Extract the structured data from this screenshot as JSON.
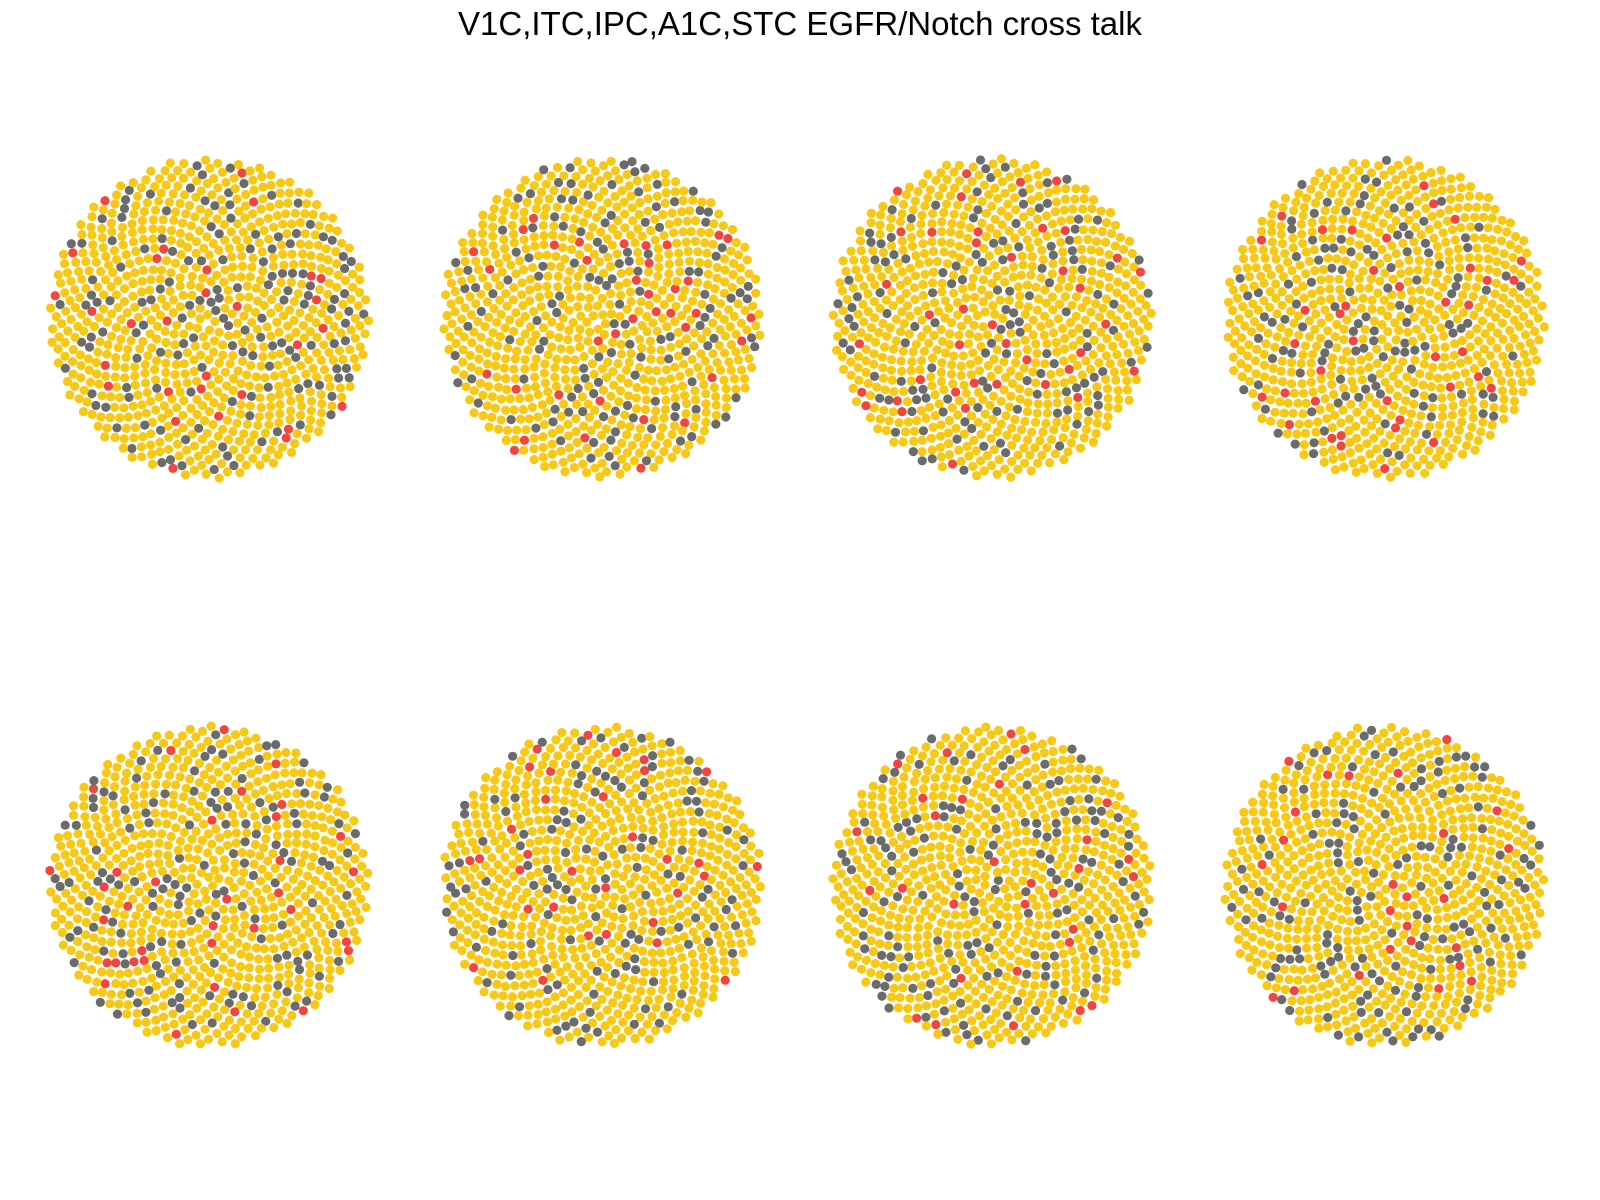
{
  "figure": {
    "title": "V1C,ITC,IPC,A1C,STC EGFR/Notch cross talk"
  },
  "legend_colors": {
    "majority_cell": "#F7C815",
    "gray_cell": "#6B6B6B",
    "red_cell": "#F0463F"
  },
  "panels": [
    {
      "row": 1,
      "col": 1,
      "gray_fraction": 0.16,
      "red_fraction": 0.035
    },
    {
      "row": 1,
      "col": 2,
      "gray_fraction": 0.16,
      "red_fraction": 0.04
    },
    {
      "row": 1,
      "col": 3,
      "gray_fraction": 0.15,
      "red_fraction": 0.04
    },
    {
      "row": 1,
      "col": 4,
      "gray_fraction": 0.15,
      "red_fraction": 0.04
    },
    {
      "row": 2,
      "col": 1,
      "gray_fraction": 0.16,
      "red_fraction": 0.04
    },
    {
      "row": 2,
      "col": 2,
      "gray_fraction": 0.15,
      "red_fraction": 0.04
    },
    {
      "row": 2,
      "col": 3,
      "gray_fraction": 0.16,
      "red_fraction": 0.04
    },
    {
      "row": 2,
      "col": 4,
      "gray_fraction": 0.15,
      "red_fraction": 0.04
    }
  ]
}
